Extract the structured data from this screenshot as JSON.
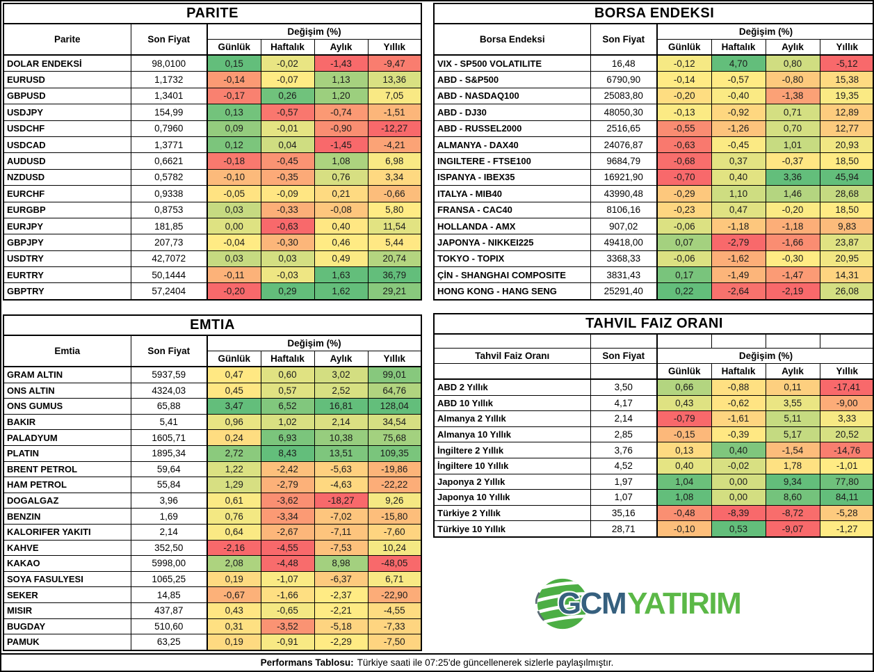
{
  "palette": {
    "scale_min": "#F8696B",
    "scale_mid": "#FFEB84",
    "scale_max": "#63BE7B",
    "border": "#000000",
    "logo_blue": "#36607E",
    "logo_green": "#5BB847",
    "globe_green": "#4CAE44"
  },
  "change_columns": [
    "Günlük",
    "Haftalık",
    "Aylık",
    "Yıllık"
  ],
  "chart_data": [
    {
      "type": "table",
      "title": "PARITE",
      "headers": {
        "name": "Parite",
        "price": "Son Fiyat",
        "change": "Değişim (%)"
      },
      "columns": [
        "Parite",
        "Son Fiyat",
        "Günlük",
        "Haftalık",
        "Aylık",
        "Yıllık"
      ],
      "rows": [
        [
          "DOLAR ENDEKSİ",
          "98,0100",
          "0,15",
          "-0,02",
          "-1,43",
          "-9,47"
        ],
        [
          "EURUSD",
          "1,1732",
          "-0,14",
          "-0,07",
          "1,13",
          "13,36"
        ],
        [
          "GBPUSD",
          "1,3401",
          "-0,17",
          "0,26",
          "1,20",
          "7,05"
        ],
        [
          "USDJPY",
          "154,99",
          "0,13",
          "-0,57",
          "-0,74",
          "-1,51"
        ],
        [
          "USDCHF",
          "0,7960",
          "0,09",
          "-0,01",
          "-0,90",
          "-12,27"
        ],
        [
          "USDCAD",
          "1,3771",
          "0,12",
          "0,04",
          "-1,45",
          "-4,21"
        ],
        [
          "AUDUSD",
          "0,6621",
          "-0,18",
          "-0,45",
          "1,08",
          "6,98"
        ],
        [
          "NZDUSD",
          "0,5782",
          "-0,10",
          "-0,35",
          "0,76",
          "3,34"
        ],
        [
          "EURCHF",
          "0,9338",
          "-0,05",
          "-0,09",
          "0,21",
          "-0,66"
        ],
        [
          "EURGBP",
          "0,8753",
          "0,03",
          "-0,33",
          "-0,08",
          "5,80"
        ],
        [
          "EURJPY",
          "181,85",
          "0,00",
          "-0,63",
          "0,40",
          "11,54"
        ],
        [
          "GBPJPY",
          "207,73",
          "-0,04",
          "-0,30",
          "0,46",
          "5,44"
        ],
        [
          "USDTRY",
          "42,7072",
          "0,03",
          "0,03",
          "0,49",
          "20,74"
        ],
        [
          "EURTRY",
          "50,1444",
          "-0,11",
          "-0,03",
          "1,63",
          "36,79"
        ],
        [
          "GBPTRY",
          "57,2404",
          "-0,20",
          "0,29",
          "1,62",
          "29,21"
        ]
      ]
    },
    {
      "type": "table",
      "title": "BORSA ENDEKSI",
      "headers": {
        "name": "Borsa Endeksi",
        "price": "Son Fiyat",
        "change": "Değişim (%)"
      },
      "columns": [
        "Borsa Endeksi",
        "Son Fiyat",
        "Günlük",
        "Haftalık",
        "Aylık",
        "Yıllık"
      ],
      "rows": [
        [
          "VIX - SP500 VOLATILITE",
          "16,48",
          "-0,12",
          "4,70",
          "0,80",
          "-5,12"
        ],
        [
          "ABD - S&P500",
          "6790,90",
          "-0,14",
          "-0,57",
          "-0,80",
          "15,38"
        ],
        [
          "ABD - NASDAQ100",
          "25083,80",
          "-0,20",
          "-0,40",
          "-1,38",
          "19,35"
        ],
        [
          "ABD - DJ30",
          "48050,30",
          "-0,13",
          "-0,92",
          "0,71",
          "12,89"
        ],
        [
          "ABD - RUSSEL2000",
          "2516,65",
          "-0,55",
          "-1,26",
          "0,70",
          "12,77"
        ],
        [
          "ALMANYA - DAX40",
          "24076,87",
          "-0,63",
          "-0,45",
          "1,01",
          "20,93"
        ],
        [
          "INGILTERE - FTSE100",
          "9684,79",
          "-0,68",
          "0,37",
          "-0,37",
          "18,50"
        ],
        [
          "ISPANYA - IBEX35",
          "16921,90",
          "-0,70",
          "0,40",
          "3,36",
          "45,94"
        ],
        [
          "ITALYA - MIB40",
          "43990,48",
          "-0,29",
          "1,10",
          "1,46",
          "28,68"
        ],
        [
          "FRANSA - CAC40",
          "8106,16",
          "-0,23",
          "0,47",
          "-0,20",
          "18,50"
        ],
        [
          "HOLLANDA - AMX",
          "907,02",
          "-0,06",
          "-1,18",
          "-1,18",
          "9,83"
        ],
        [
          "JAPONYA - NIKKEI225",
          "49418,00",
          "0,07",
          "-2,79",
          "-1,66",
          "23,87"
        ],
        [
          "TOKYO - TOPIX",
          "3368,33",
          "-0,06",
          "-1,62",
          "-0,30",
          "20,95"
        ],
        [
          "ÇİN - SHANGHAI COMPOSITE",
          "3831,43",
          "0,17",
          "-1,49",
          "-1,47",
          "14,31"
        ],
        [
          "HONG KONG - HANG SENG",
          "25291,40",
          "0,22",
          "-2,64",
          "-2,19",
          "26,08"
        ]
      ]
    },
    {
      "type": "table",
      "title": "EMTIA",
      "headers": {
        "name": "Emtia",
        "price": "Son Fiyat",
        "change": "Değişim (%)"
      },
      "columns": [
        "Emtia",
        "Son Fiyat",
        "Günlük",
        "Haftalık",
        "Aylık",
        "Yıllık"
      ],
      "rows": [
        [
          "GRAM ALTIN",
          "5937,59",
          "0,47",
          "0,60",
          "3,02",
          "99,01"
        ],
        [
          "ONS ALTIN",
          "4324,03",
          "0,45",
          "0,57",
          "2,52",
          "64,76"
        ],
        [
          "ONS GUMUS",
          "65,88",
          "3,47",
          "6,52",
          "16,81",
          "128,04"
        ],
        [
          "BAKIR",
          "5,41",
          "0,96",
          "1,02",
          "2,14",
          "34,54"
        ],
        [
          "PALADYUM",
          "1605,71",
          "0,24",
          "6,93",
          "10,38",
          "75,68"
        ],
        [
          "PLATIN",
          "1895,34",
          "2,72",
          "8,43",
          "13,51",
          "109,35"
        ],
        [
          "BRENT PETROL",
          "59,64",
          "1,22",
          "-2,42",
          "-5,63",
          "-19,86"
        ],
        [
          "HAM PETROL",
          "55,84",
          "1,29",
          "-2,79",
          "-4,63",
          "-22,22"
        ],
        [
          "DOGALGAZ",
          "3,96",
          "0,61",
          "-3,62",
          "-18,27",
          "9,26"
        ],
        [
          "BENZIN",
          "1,69",
          "0,76",
          "-3,34",
          "-7,02",
          "-15,80"
        ],
        [
          "KALORIFER YAKITI",
          "2,14",
          "0,64",
          "-2,67",
          "-7,11",
          "-7,60"
        ],
        [
          "KAHVE",
          "352,50",
          "-2,16",
          "-4,55",
          "-7,53",
          "10,24"
        ],
        [
          "KAKAO",
          "5998,00",
          "2,08",
          "-4,48",
          "8,98",
          "-48,05"
        ],
        [
          "SOYA FASULYESI",
          "1065,25",
          "0,19",
          "-1,07",
          "-6,37",
          "6,71"
        ],
        [
          "SEKER",
          "14,85",
          "-0,67",
          "-1,66",
          "-2,37",
          "-22,90"
        ],
        [
          "MISIR",
          "437,87",
          "0,43",
          "-0,65",
          "-2,21",
          "-4,55"
        ],
        [
          "BUGDAY",
          "510,60",
          "0,31",
          "-3,52",
          "-5,18",
          "-7,33"
        ],
        [
          "PAMUK",
          "63,25",
          "0,19",
          "-0,91",
          "-2,29",
          "-7,50"
        ]
      ]
    },
    {
      "type": "table",
      "title": "TAHVIL FAIZ ORANI",
      "headers": {
        "name": "Tahvil Faiz Oranı",
        "price": "Son Fiyat",
        "change": "Değişim (%)"
      },
      "columns": [
        "Tahvil Faiz Oranı",
        "Son Fiyat",
        "Günlük",
        "Haftalık",
        "Aylık",
        "Yıllık"
      ],
      "rows": [
        [
          "ABD 2 Yıllık",
          "3,50",
          "0,66",
          "-0,88",
          "0,11",
          "-17,41"
        ],
        [
          "ABD 10 Yıllık",
          "4,17",
          "0,43",
          "-0,62",
          "3,55",
          "-9,00"
        ],
        [
          "Almanya 2 Yıllık",
          "2,14",
          "-0,79",
          "-1,61",
          "5,11",
          "3,33"
        ],
        [
          "Almanya 10 Yıllık",
          "2,85",
          "-0,15",
          "-0,39",
          "5,17",
          "20,52"
        ],
        [
          "İngiltere 2 Yıllık",
          "3,76",
          "0,13",
          "0,40",
          "-1,54",
          "-14,76"
        ],
        [
          "İngiltere 10 Yıllık",
          "4,52",
          "0,40",
          "-0,02",
          "1,78",
          "-1,01"
        ],
        [
          "Japonya 2 Yıllık",
          "1,97",
          "1,04",
          "0,00",
          "9,34",
          "77,80"
        ],
        [
          "Japonya 10 Yıllık",
          "1,07",
          "1,08",
          "0,00",
          "8,60",
          "84,11"
        ],
        [
          "Türkiye 2 Yıllık",
          "35,16",
          "-0,48",
          "-8,39",
          "-8,72",
          "-5,28"
        ],
        [
          "Türkiye 10 Yıllık",
          "28,71",
          "-0,10",
          "0,53",
          "-9,07",
          "-1,27"
        ]
      ]
    }
  ],
  "logo": {
    "gcm": "GCM",
    "yatirim": "YATIRIM"
  },
  "footer": {
    "label": "Performans Tablosu:",
    "text": "Türkiye saati ile 07:25'de güncellenerek sizlerle paylaşılmıştır."
  }
}
